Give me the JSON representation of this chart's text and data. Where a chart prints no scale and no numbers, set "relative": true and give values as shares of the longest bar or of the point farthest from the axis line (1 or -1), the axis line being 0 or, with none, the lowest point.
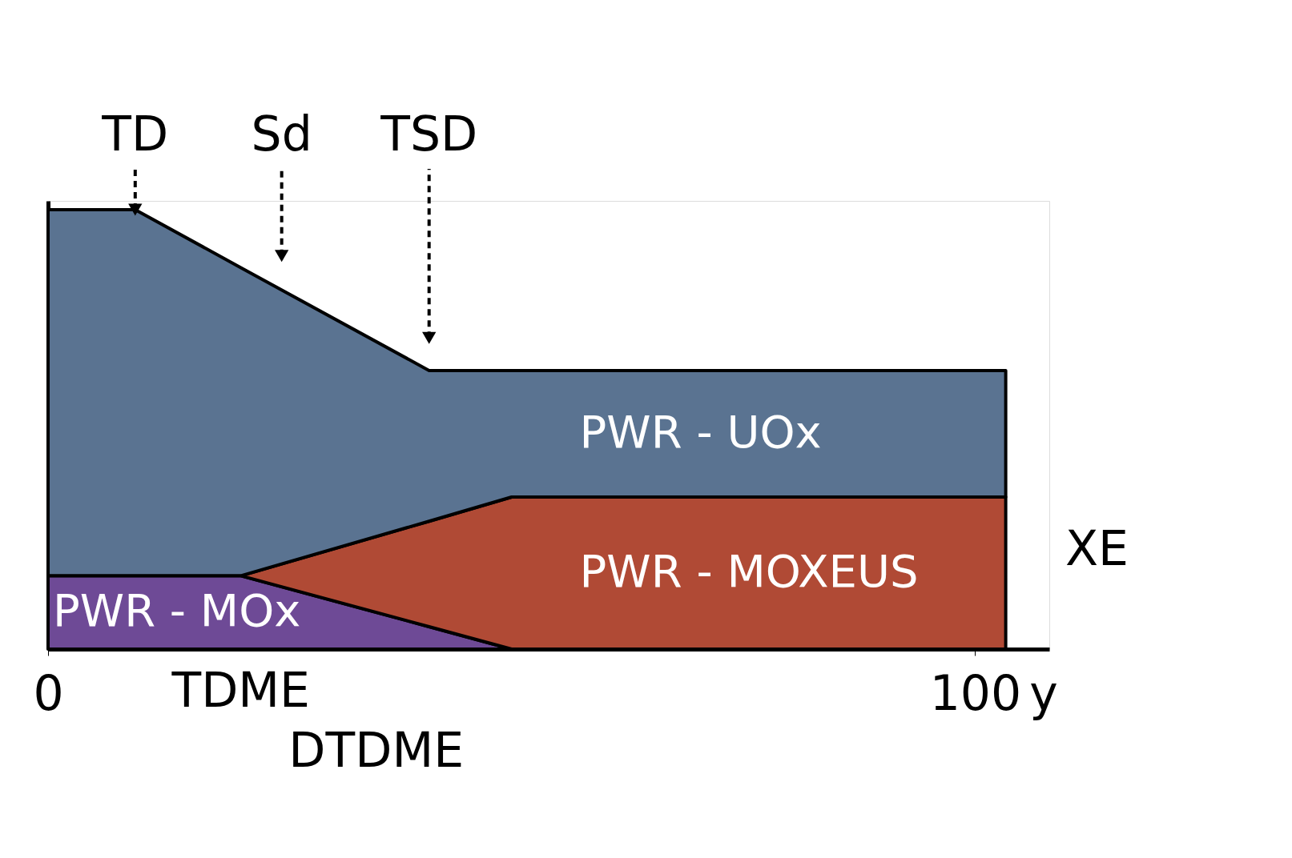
{
  "chart_data": {
    "type": "area",
    "stacked": true,
    "relative": true,
    "x": [
      0,
      9.4,
      20.8,
      41.1,
      50,
      103.3
    ],
    "series": [
      {
        "name": "PWR - MOx",
        "color": "#6e4a96",
        "values": [
          0.167,
          0.167,
          0.167,
          0.051,
          0,
          0
        ]
      },
      {
        "name": "PWR - MOXEUS",
        "color": "#b04a35",
        "values": [
          0,
          0,
          0,
          0.24,
          0.346,
          0.346
        ]
      },
      {
        "name": "PWR - UOx",
        "color": "#5a7391",
        "values": [
          0.833,
          0.833,
          0.701,
          0.343,
          0.288,
          0.288
        ]
      }
    ],
    "xlim": [
      0,
      108
    ],
    "xticks": [
      0,
      100
    ],
    "xlabel": "y",
    "grid": false,
    "legend": false,
    "annotations": [
      {
        "text": "TD",
        "x": 9.4,
        "y": 1
      },
      {
        "text": "Sd",
        "x": 25.2,
        "y": 0.895
      },
      {
        "text": "TSD",
        "x": 41.1,
        "y": 0.708
      },
      {
        "text": "TDME",
        "x": 20.8,
        "y": 0
      },
      {
        "text": "DTDME",
        "x": 35.4,
        "y": 0
      },
      "XE"
    ]
  }
}
